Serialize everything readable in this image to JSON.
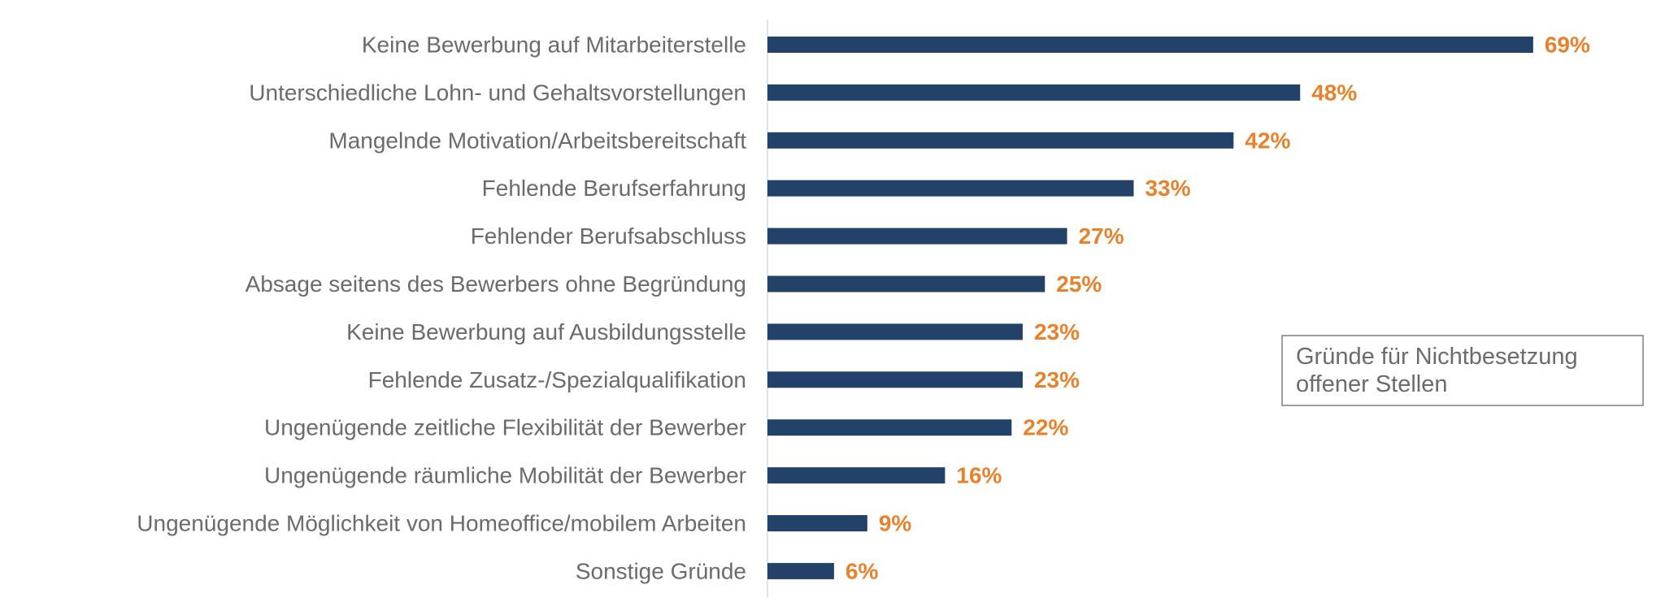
{
  "chart_data": {
    "type": "bar",
    "orientation": "horizontal",
    "categories": [
      "Keine Bewerbung auf Mitarbeiterstelle",
      "Unterschiedliche Lohn- und Gehaltsvorstellungen",
      "Mangelnde Motivation/Arbeitsbereitschaft",
      "Fehlende Berufserfahrung",
      "Fehlender Berufsabschluss",
      "Absage seitens des Bewerbers ohne Begründung",
      "Keine Bewerbung auf Ausbildungsstelle",
      "Fehlende Zusatz-/Spezialqualifikation",
      "Ungenügende zeitliche Flexibilität der Bewerber",
      "Ungenügende räumliche Mobilität der Bewerber",
      "Ungenügende Möglichkeit von Homeoffice/mobilem Arbeiten",
      "Sonstige Gründe"
    ],
    "series": [
      {
        "name": "Gründe für Nichtbesetzung offener Stellen",
        "values": [
          69,
          48,
          42,
          33,
          27,
          25,
          23,
          23,
          22,
          16,
          9,
          6
        ]
      }
    ],
    "value_labels": [
      "69%",
      "48%",
      "42%",
      "33%",
      "27%",
      "25%",
      "23%",
      "23%",
      "22%",
      "16%",
      "9%",
      "6%"
    ],
    "unit": "%",
    "legend": {
      "lines": [
        "Gründe für Nichtbesetzung",
        "offener Stellen"
      ],
      "placement": "right"
    },
    "grid": false,
    "colors": {
      "bar": "#22426a",
      "value_label": "#e8822a",
      "category_label": "#6b6b6b",
      "axis": "#d9d9d9",
      "legend_border": "#7f7f7f"
    }
  }
}
